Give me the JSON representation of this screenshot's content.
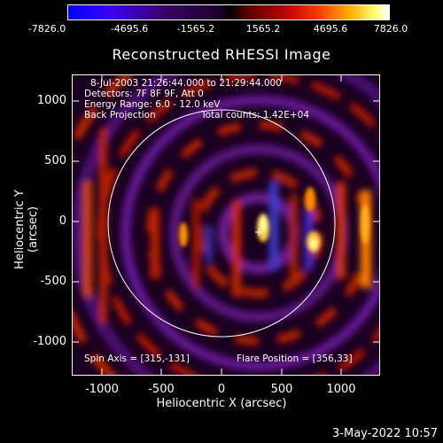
{
  "colorbar": {
    "ticks": [
      "-7826.0",
      "-4695.6",
      "-1565.2",
      "1565.2",
      "4695.6",
      "7826.0"
    ]
  },
  "title": "Reconstructed RHESSI Image",
  "annotations": {
    "time_range": "8-Jul-2003 21:26:44.000 to 21:29:44.000",
    "detectors": "Detectors: 7F 8F 9F, Att 0",
    "energy_range": "Energy Range: 6.0 - 12.0 keV",
    "method": "Back Projection",
    "total_counts": "Total counts: 1.42E+04",
    "spin_axis": "Spin Axis = [315,-131]",
    "flare_position": "Flare Position = [356,33]"
  },
  "axes": {
    "xlabel": "Heliocentric X (arcsec)",
    "ylabel": "Heliocentric Y (arcsec)",
    "xticks": [
      "-1000",
      "-500",
      "0",
      "500",
      "1000"
    ],
    "yticks": [
      "1000",
      "500",
      "0",
      "-500",
      "-1000"
    ]
  },
  "footer": {
    "date": "3-May-2022 10:57"
  },
  "colors": {
    "background": "#000000",
    "text": "#ffffff",
    "limb_circle": "#ffffff"
  }
}
